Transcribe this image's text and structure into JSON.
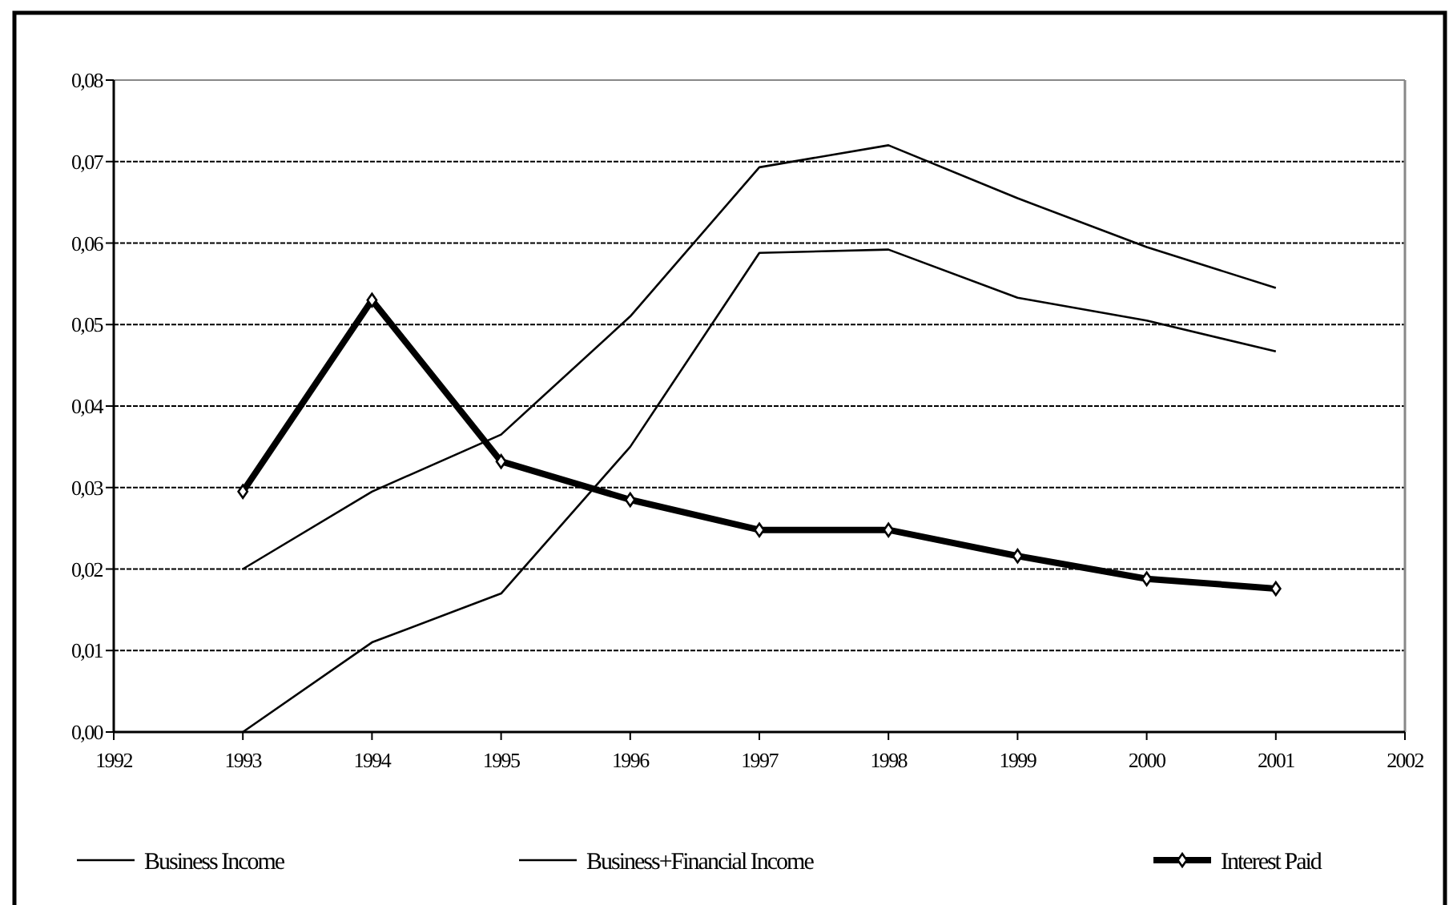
{
  "chart_data": {
    "type": "line",
    "x": [
      1993,
      1994,
      1995,
      1996,
      1997,
      1998,
      1999,
      2000,
      2001
    ],
    "xlim": [
      1992,
      2002
    ],
    "xticks": [
      1992,
      1993,
      1994,
      1995,
      1996,
      1997,
      1998,
      1999,
      2000,
      2001,
      2002
    ],
    "ylim": [
      0,
      0.08
    ],
    "yticks": [
      {
        "value": 0,
        "label": "0,00"
      },
      {
        "value": 0.01,
        "label": "0,01"
      },
      {
        "value": 0.02,
        "label": "0,02"
      },
      {
        "value": 0.03,
        "label": "0,03"
      },
      {
        "value": 0.04,
        "label": "0,04"
      },
      {
        "value": 0.05,
        "label": "0,05"
      },
      {
        "value": 0.06,
        "label": "0,06"
      },
      {
        "value": 0.07,
        "label": "0,07"
      },
      {
        "value": 0.08,
        "label": "0,08"
      }
    ],
    "grid": "y",
    "legend": "bottom",
    "series": [
      {
        "name": "Business Income",
        "color": "#000000",
        "marker": "none",
        "values": [
          0.02,
          0.0295,
          0.0365,
          0.051,
          0.0693,
          0.072,
          0.0655,
          0.0595,
          0.0545
        ]
      },
      {
        "name": "Business+Financial Income",
        "color": "#000000",
        "marker": "none",
        "values": [
          0.0,
          0.011,
          0.017,
          0.035,
          0.0588,
          0.0592,
          0.0533,
          0.0505,
          0.0467
        ]
      },
      {
        "name": "Interest Paid",
        "color": "#000000",
        "marker": "diamond",
        "values": [
          0.0295,
          0.053,
          0.0332,
          0.0285,
          0.0248,
          0.0248,
          0.0216,
          0.0188,
          0.0176
        ]
      }
    ]
  }
}
